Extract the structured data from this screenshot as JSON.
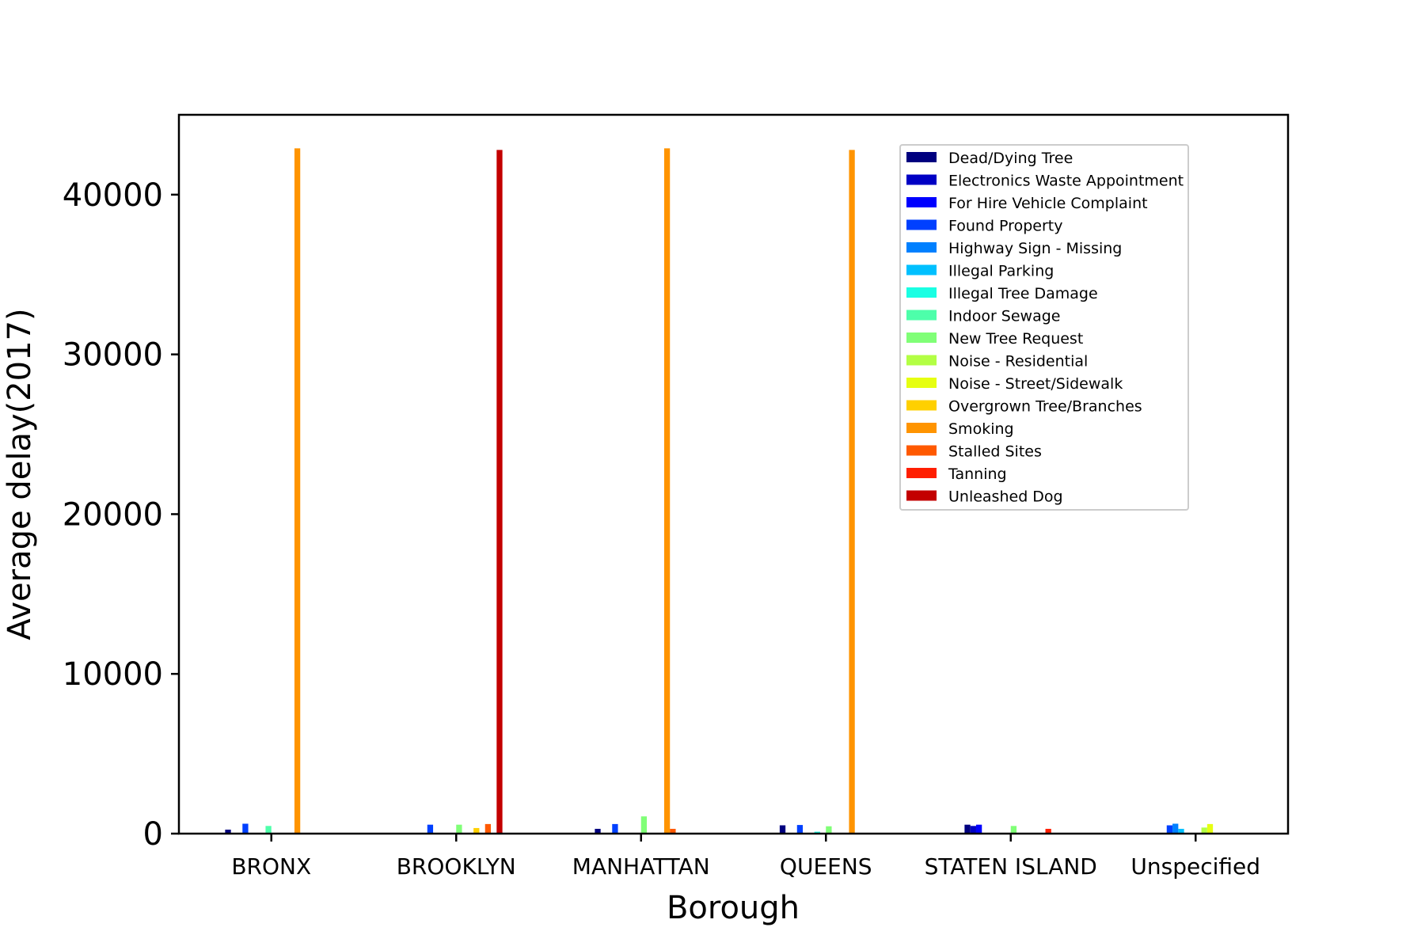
{
  "chart_data": {
    "type": "bar",
    "title": "",
    "xlabel": "Borough",
    "ylabel": "Average delay(2017)",
    "ylim": [
      0,
      45000
    ],
    "yticks": [
      0,
      10000,
      20000,
      30000,
      40000
    ],
    "grid": false,
    "legend_position": "top-right",
    "categories": [
      "BRONX",
      "BROOKLYN",
      "MANHATTAN",
      "QUEENS",
      "STATEN ISLAND",
      "Unspecified"
    ],
    "series": [
      {
        "name": "Dead/Dying Tree",
        "color": "#00007f",
        "values": [
          250,
          0,
          300,
          520,
          560,
          0
        ]
      },
      {
        "name": "Electronics Waste Appointment",
        "color": "#0000c4",
        "values": [
          0,
          0,
          0,
          0,
          480,
          0
        ]
      },
      {
        "name": "For Hire Vehicle Complaint",
        "color": "#0000ff",
        "values": [
          0,
          0,
          0,
          0,
          560,
          0
        ]
      },
      {
        "name": "Found Property",
        "color": "#0040ff",
        "values": [
          620,
          560,
          600,
          540,
          0,
          520
        ]
      },
      {
        "name": "Highway Sign - Missing",
        "color": "#0080ff",
        "values": [
          0,
          0,
          0,
          0,
          0,
          620
        ]
      },
      {
        "name": "Illegal Parking",
        "color": "#00c0ff",
        "values": [
          0,
          0,
          0,
          0,
          0,
          300
        ]
      },
      {
        "name": "Illegal Tree Damage",
        "color": "#1affe3",
        "values": [
          0,
          0,
          0,
          120,
          0,
          0
        ]
      },
      {
        "name": "Indoor Sewage",
        "color": "#4dffaa",
        "values": [
          480,
          0,
          0,
          0,
          0,
          0
        ]
      },
      {
        "name": "New Tree Request",
        "color": "#80ff77",
        "values": [
          0,
          560,
          1080,
          460,
          480,
          0
        ]
      },
      {
        "name": "Noise - Residential",
        "color": "#b3ff44",
        "values": [
          0,
          0,
          0,
          0,
          0,
          380
        ]
      },
      {
        "name": "Noise - Street/Sidewalk",
        "color": "#e6ff11",
        "values": [
          0,
          0,
          0,
          0,
          0,
          600
        ]
      },
      {
        "name": "Overgrown Tree/Branches",
        "color": "#ffd000",
        "values": [
          0,
          350,
          0,
          0,
          0,
          0
        ]
      },
      {
        "name": "Smoking",
        "color": "#ff9400",
        "values": [
          42900,
          0,
          42900,
          42800,
          0,
          0
        ]
      },
      {
        "name": "Stalled Sites",
        "color": "#ff5900",
        "values": [
          0,
          600,
          300,
          0,
          0,
          0
        ]
      },
      {
        "name": "Tanning",
        "color": "#ff1e00",
        "values": [
          0,
          0,
          0,
          0,
          300,
          0
        ]
      },
      {
        "name": "Unleashed Dog",
        "color": "#c30000",
        "values": [
          0,
          42800,
          0,
          0,
          0,
          0
        ]
      }
    ]
  }
}
